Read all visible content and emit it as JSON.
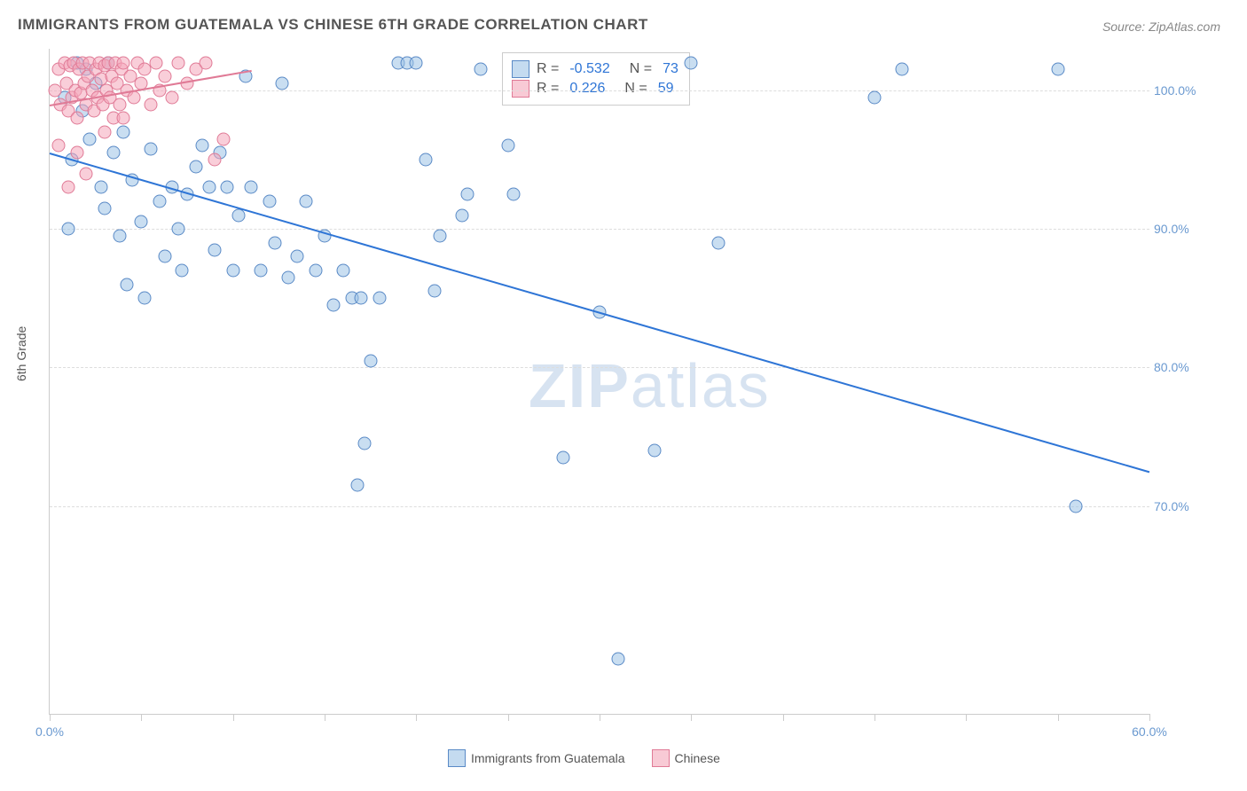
{
  "title": "IMMIGRANTS FROM GUATEMALA VS CHINESE 6TH GRADE CORRELATION CHART",
  "source_prefix": "Source: ",
  "source_name": "ZipAtlas.com",
  "ylabel": "6th Grade",
  "watermark_bold": "ZIP",
  "watermark_rest": "atlas",
  "chart": {
    "type": "scatter",
    "xlim": [
      0,
      60
    ],
    "ylim": [
      55,
      103
    ],
    "xticks": [
      0,
      5,
      10,
      15,
      20,
      25,
      30,
      35,
      40,
      45,
      50,
      55,
      60
    ],
    "xtick_labels": {
      "0": "0.0%",
      "60": "60.0%"
    },
    "yticks": [
      70,
      80,
      90,
      100
    ],
    "ytick_labels": {
      "70": "70.0%",
      "80": "80.0%",
      "90": "90.0%",
      "100": "100.0%"
    },
    "grid_color": "#dddddd",
    "axis_color": "#cccccc",
    "background_color": "#ffffff",
    "marker_size": 15,
    "marker_opacity": 0.55,
    "series": [
      {
        "name": "Immigrants from Guatemala",
        "color_fill": "#9dc3e6",
        "color_border": "#5a8ac6",
        "trend_color": "#2e75d6",
        "R": "-0.532",
        "N": "73",
        "trend": {
          "x1": 0,
          "y1": 95.5,
          "x2": 60,
          "y2": 72.5
        },
        "points": [
          [
            0.8,
            99.5
          ],
          [
            1.2,
            95.0
          ],
          [
            1.5,
            102.0
          ],
          [
            1.8,
            98.5
          ],
          [
            2.0,
            101.5
          ],
          [
            2.2,
            96.5
          ],
          [
            2.5,
            100.5
          ],
          [
            2.8,
            93.0
          ],
          [
            3.0,
            91.5
          ],
          [
            3.2,
            102.0
          ],
          [
            3.5,
            95.5
          ],
          [
            3.8,
            89.5
          ],
          [
            4.0,
            97.0
          ],
          [
            4.5,
            93.5
          ],
          [
            5.0,
            90.5
          ],
          [
            5.2,
            85.0
          ],
          [
            5.5,
            95.8
          ],
          [
            6.0,
            92.0
          ],
          [
            6.3,
            88.0
          ],
          [
            6.7,
            93.0
          ],
          [
            7.0,
            90.0
          ],
          [
            7.2,
            87.0
          ],
          [
            7.5,
            92.5
          ],
          [
            8.0,
            94.5
          ],
          [
            8.3,
            96.0
          ],
          [
            8.7,
            93.0
          ],
          [
            9.0,
            88.5
          ],
          [
            9.3,
            95.5
          ],
          [
            9.7,
            93.0
          ],
          [
            10.0,
            87.0
          ],
          [
            10.3,
            91.0
          ],
          [
            10.7,
            101.0
          ],
          [
            11.0,
            93.0
          ],
          [
            11.5,
            87.0
          ],
          [
            12.0,
            92.0
          ],
          [
            12.3,
            89.0
          ],
          [
            12.7,
            100.5
          ],
          [
            13.0,
            86.5
          ],
          [
            13.5,
            88.0
          ],
          [
            14.0,
            92.0
          ],
          [
            14.5,
            87.0
          ],
          [
            15.0,
            89.5
          ],
          [
            15.5,
            84.5
          ],
          [
            16.0,
            87.0
          ],
          [
            16.5,
            85.0
          ],
          [
            16.8,
            71.5
          ],
          [
            17.0,
            85.0
          ],
          [
            17.2,
            74.5
          ],
          [
            17.5,
            80.5
          ],
          [
            18.0,
            85.0
          ],
          [
            19.0,
            102.0
          ],
          [
            19.5,
            102.0
          ],
          [
            20.0,
            102.0
          ],
          [
            20.5,
            95.0
          ],
          [
            21.0,
            85.5
          ],
          [
            21.3,
            89.5
          ],
          [
            22.5,
            91.0
          ],
          [
            22.8,
            92.5
          ],
          [
            23.5,
            101.5
          ],
          [
            25.0,
            96.0
          ],
          [
            25.3,
            92.5
          ],
          [
            28.0,
            73.5
          ],
          [
            30.0,
            84.0
          ],
          [
            31.0,
            59.0
          ],
          [
            33.0,
            74.0
          ],
          [
            35.0,
            102.0
          ],
          [
            36.5,
            89.0
          ],
          [
            45.0,
            99.5
          ],
          [
            46.5,
            101.5
          ],
          [
            55.0,
            101.5
          ],
          [
            56.0,
            70.0
          ],
          [
            1.0,
            90.0
          ],
          [
            4.2,
            86.0
          ]
        ]
      },
      {
        "name": "Chinese",
        "color_fill": "#f4a6b9",
        "color_border": "#e07a96",
        "trend_color": "#e07a96",
        "R": "0.226",
        "N": "59",
        "trend": {
          "x1": 0,
          "y1": 99.0,
          "x2": 11,
          "y2": 101.5
        },
        "points": [
          [
            0.3,
            100.0
          ],
          [
            0.5,
            101.5
          ],
          [
            0.6,
            99.0
          ],
          [
            0.8,
            102.0
          ],
          [
            0.9,
            100.5
          ],
          [
            1.0,
            98.5
          ],
          [
            1.1,
            101.8
          ],
          [
            1.2,
            99.5
          ],
          [
            1.3,
            102.0
          ],
          [
            1.4,
            100.0
          ],
          [
            1.5,
            98.0
          ],
          [
            1.6,
            101.5
          ],
          [
            1.7,
            99.8
          ],
          [
            1.8,
            102.0
          ],
          [
            1.9,
            100.5
          ],
          [
            2.0,
            99.0
          ],
          [
            2.1,
            101.0
          ],
          [
            2.2,
            102.0
          ],
          [
            2.3,
            100.0
          ],
          [
            2.4,
            98.5
          ],
          [
            2.5,
            101.5
          ],
          [
            2.6,
            99.5
          ],
          [
            2.7,
            102.0
          ],
          [
            2.8,
            100.8
          ],
          [
            2.9,
            99.0
          ],
          [
            3.0,
            101.8
          ],
          [
            3.1,
            100.0
          ],
          [
            3.2,
            102.0
          ],
          [
            3.3,
            99.5
          ],
          [
            3.4,
            101.0
          ],
          [
            3.5,
            98.0
          ],
          [
            3.6,
            102.0
          ],
          [
            3.7,
            100.5
          ],
          [
            3.8,
            99.0
          ],
          [
            3.9,
            101.5
          ],
          [
            4.0,
            102.0
          ],
          [
            4.2,
            100.0
          ],
          [
            4.4,
            101.0
          ],
          [
            4.6,
            99.5
          ],
          [
            4.8,
            102.0
          ],
          [
            5.0,
            100.5
          ],
          [
            5.2,
            101.5
          ],
          [
            5.5,
            99.0
          ],
          [
            5.8,
            102.0
          ],
          [
            6.0,
            100.0
          ],
          [
            6.3,
            101.0
          ],
          [
            6.7,
            99.5
          ],
          [
            7.0,
            102.0
          ],
          [
            7.5,
            100.5
          ],
          [
            8.0,
            101.5
          ],
          [
            8.5,
            102.0
          ],
          [
            9.0,
            95.0
          ],
          [
            9.5,
            96.5
          ],
          [
            2.0,
            94.0
          ],
          [
            1.0,
            93.0
          ],
          [
            0.5,
            96.0
          ],
          [
            1.5,
            95.5
          ],
          [
            3.0,
            97.0
          ],
          [
            4.0,
            98.0
          ]
        ]
      }
    ]
  },
  "legend_r_label": "R = ",
  "legend_n_label": "N = "
}
